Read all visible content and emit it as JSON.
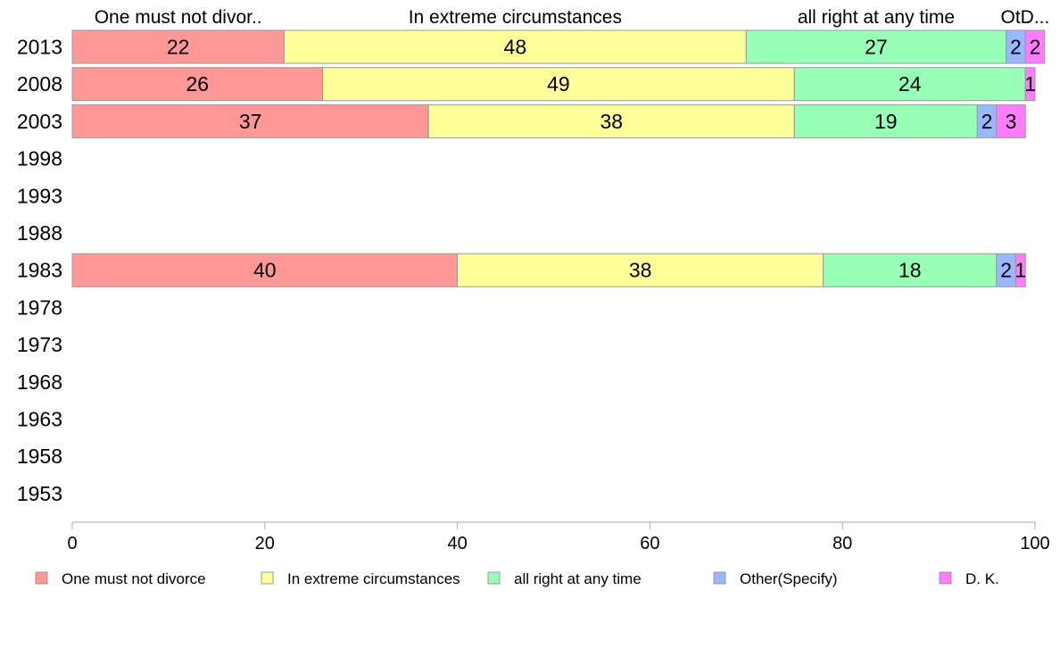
{
  "chart_data": {
    "type": "bar",
    "orientation": "horizontal",
    "stacked": true,
    "categories": [
      "2013",
      "2008",
      "2003",
      "1998",
      "1993",
      "1988",
      "1983",
      "1978",
      "1973",
      "1968",
      "1963",
      "1958",
      "1953"
    ],
    "series": [
      {
        "name": "One must not divorce",
        "short_label": "One must not divor..",
        "color": "#ff9896",
        "values": [
          22,
          26,
          37,
          null,
          null,
          null,
          40,
          null,
          null,
          null,
          null,
          null,
          null
        ]
      },
      {
        "name": "In extreme circumstances",
        "short_label": "In extreme circumstances",
        "color": "#ffff99",
        "values": [
          48,
          49,
          38,
          null,
          null,
          null,
          38,
          null,
          null,
          null,
          null,
          null,
          null
        ]
      },
      {
        "name": "all right at any time",
        "short_label": "all right at any time",
        "color": "#98ffb6",
        "values": [
          27,
          24,
          19,
          null,
          null,
          null,
          18,
          null,
          null,
          null,
          null,
          null,
          null
        ]
      },
      {
        "name": "Other(Specify)",
        "short_label": "Ot..",
        "color": "#98b9ff",
        "values": [
          2,
          0,
          2,
          null,
          null,
          null,
          2,
          null,
          null,
          null,
          null,
          null,
          null
        ]
      },
      {
        "name": "D. K.",
        "short_label": "D...",
        "color": "#ff7cff",
        "values": [
          2,
          1,
          3,
          null,
          null,
          null,
          1,
          null,
          null,
          null,
          null,
          null,
          null
        ]
      }
    ],
    "xlim": [
      0,
      100
    ],
    "x_ticks": [
      "0",
      "20",
      "40",
      "60",
      "80",
      "100"
    ],
    "grid": false,
    "legend_position": "bottom"
  }
}
